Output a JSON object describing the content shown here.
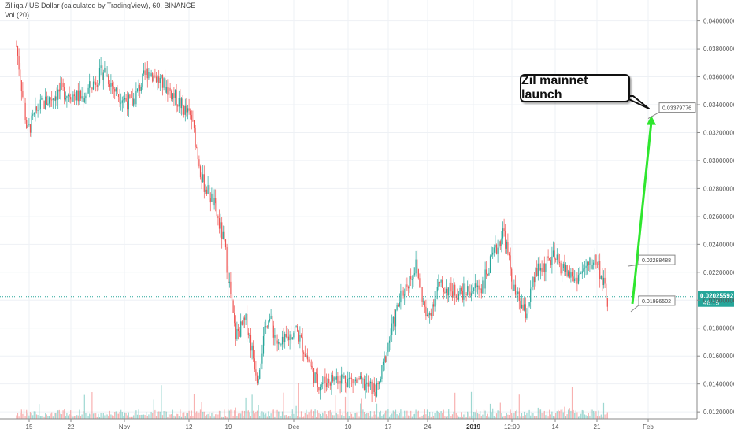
{
  "header": {
    "symbol_line": "Zilliqa / US Dollar (calculated by TradingView), 60, BINANCE",
    "vol_line": "Vol (20)"
  },
  "chart_data": {
    "type": "candlestick",
    "title": "Zilliqa / US Dollar (calculated by TradingView), 60, BINANCE",
    "timeframe": "60",
    "exchange": "BINANCE",
    "ylim": [
      0.0115,
      0.0415
    ],
    "y_ticks": [
      "0.04000000",
      "0.03800000",
      "0.03600000",
      "0.03400000",
      "0.03200000",
      "0.03000000",
      "0.02800000",
      "0.02600000",
      "0.02400000",
      "0.02200000",
      "0.02000000",
      "0.01800000",
      "0.01600000",
      "0.01400000",
      "0.01200000"
    ],
    "x_ticks": [
      {
        "label": "15",
        "bold": false
      },
      {
        "label": "22",
        "bold": false
      },
      {
        "label": "Nov",
        "bold": false
      },
      {
        "label": "12",
        "bold": false
      },
      {
        "label": "19",
        "bold": false
      },
      {
        "label": "Dec",
        "bold": false
      },
      {
        "label": "10",
        "bold": false
      },
      {
        "label": "17",
        "bold": false
      },
      {
        "label": "24",
        "bold": false
      },
      {
        "label": "2019",
        "bold": true
      },
      {
        "label": "12:00",
        "bold": false
      },
      {
        "label": "14",
        "bold": false
      },
      {
        "label": "21",
        "bold": false
      },
      {
        "label": "Feb",
        "bold": false
      }
    ],
    "price_path": [
      {
        "date": "2018-10-12",
        "price": 0.0382
      },
      {
        "date": "2018-10-14",
        "price": 0.032
      },
      {
        "date": "2018-10-16",
        "price": 0.0338
      },
      {
        "date": "2018-10-20",
        "price": 0.035
      },
      {
        "date": "2018-10-24",
        "price": 0.0345
      },
      {
        "date": "2018-10-28",
        "price": 0.0365
      },
      {
        "date": "2018-10-30",
        "price": 0.035
      },
      {
        "date": "2018-11-02",
        "price": 0.034
      },
      {
        "date": "2018-11-05",
        "price": 0.0365
      },
      {
        "date": "2018-11-09",
        "price": 0.035
      },
      {
        "date": "2018-11-13",
        "price": 0.033
      },
      {
        "date": "2018-11-15",
        "price": 0.0285
      },
      {
        "date": "2018-11-17",
        "price": 0.027
      },
      {
        "date": "2018-11-19",
        "price": 0.024
      },
      {
        "date": "2018-11-21",
        "price": 0.0175
      },
      {
        "date": "2018-11-23",
        "price": 0.0185
      },
      {
        "date": "2018-11-25",
        "price": 0.0145
      },
      {
        "date": "2018-11-27",
        "price": 0.019
      },
      {
        "date": "2018-11-29",
        "price": 0.0165
      },
      {
        "date": "2018-12-02",
        "price": 0.018
      },
      {
        "date": "2018-12-06",
        "price": 0.014
      },
      {
        "date": "2018-12-10",
        "price": 0.0145
      },
      {
        "date": "2018-12-14",
        "price": 0.014
      },
      {
        "date": "2018-12-17",
        "price": 0.0135
      },
      {
        "date": "2018-12-19",
        "price": 0.017
      },
      {
        "date": "2018-12-21",
        "price": 0.02
      },
      {
        "date": "2018-12-24",
        "price": 0.0225
      },
      {
        "date": "2018-12-26",
        "price": 0.0185
      },
      {
        "date": "2018-12-28",
        "price": 0.021
      },
      {
        "date": "2019-01-01",
        "price": 0.0205
      },
      {
        "date": "2019-01-05",
        "price": 0.021
      },
      {
        "date": "2019-01-09",
        "price": 0.025
      },
      {
        "date": "2019-01-11",
        "price": 0.0205
      },
      {
        "date": "2019-01-13",
        "price": 0.019
      },
      {
        "date": "2019-01-15",
        "price": 0.022
      },
      {
        "date": "2019-01-18",
        "price": 0.023
      },
      {
        "date": "2019-01-22",
        "price": 0.0215
      },
      {
        "date": "2019-01-26",
        "price": 0.023
      },
      {
        "date": "2019-01-28",
        "price": 0.0199
      }
    ],
    "current_price": {
      "label": "0.02025592",
      "value": 0.02025592,
      "countdown": "46:15",
      "color": "#26a69a"
    },
    "annotations": [
      {
        "label": "0.02288488",
        "value": 0.02288488
      },
      {
        "label": "0.01996502",
        "value": 0.01996502
      },
      {
        "label": "0.03379776",
        "value": 0.03379776
      }
    ],
    "projection": {
      "from": 0.01996502,
      "to": 0.03379776,
      "color": "#2ee62e"
    },
    "callout": {
      "text": "Zil mainnet launch"
    },
    "colors": {
      "up": "#26a69a",
      "down": "#ef5350",
      "grid": "#eef1f5"
    }
  }
}
